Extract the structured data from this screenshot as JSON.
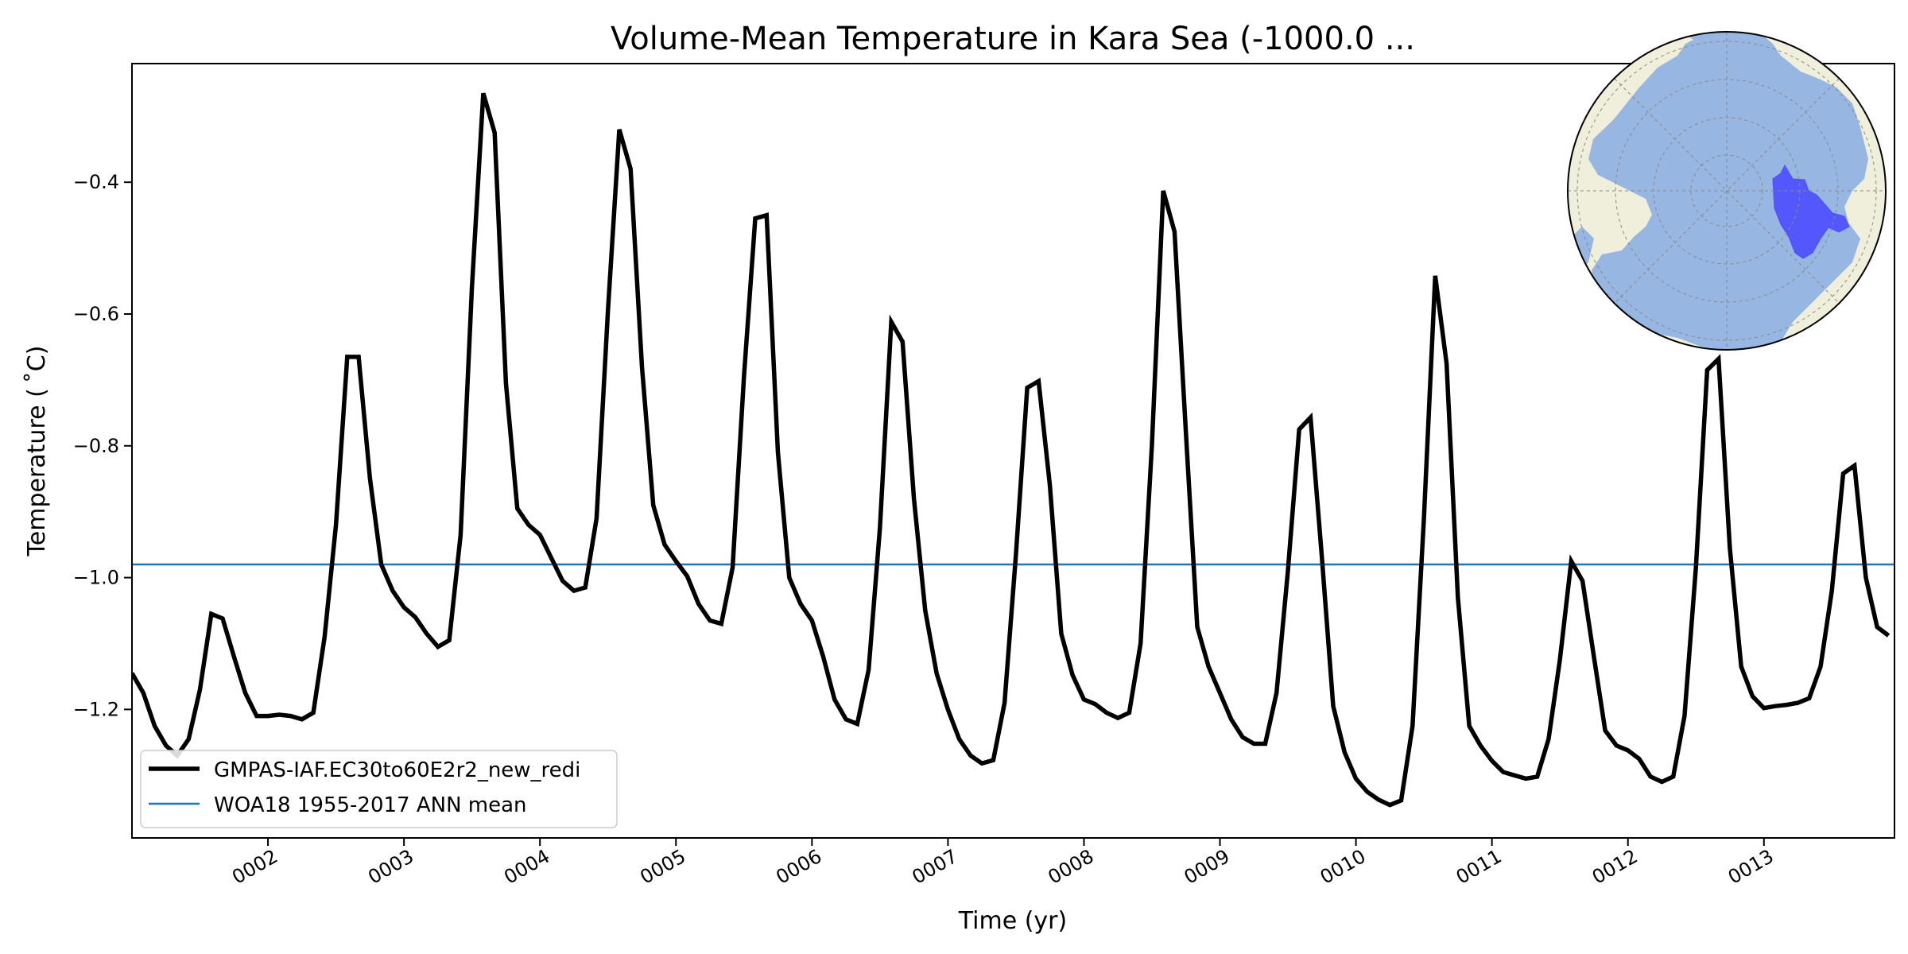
{
  "chart_data": {
    "type": "line",
    "title": "Volume-Mean Temperature in Kara Sea (-1000.0 ...",
    "xlabel": "Time (yr)",
    "ylabel": "Temperature ( ˚C)",
    "xlim": [
      1.0,
      13.96
    ],
    "ylim": [
      -1.395,
      -0.22
    ],
    "x_tick_values": [
      2,
      3,
      4,
      5,
      6,
      7,
      8,
      9,
      10,
      11,
      12,
      13
    ],
    "x_tick_labels": [
      "0002",
      "0003",
      "0004",
      "0005",
      "0006",
      "0007",
      "0008",
      "0009",
      "0010",
      "0011",
      "0012",
      "0013"
    ],
    "y_ticks": [
      -1.2,
      -1.0,
      -0.8,
      -0.6,
      -0.4
    ],
    "y_tick_labels": [
      "−1.2",
      "−1.0",
      "−0.8",
      "−0.6",
      "−0.4"
    ],
    "grid": false,
    "legend_position": "lower-left",
    "series": [
      {
        "name": "GMPAS-IAF.EC30to60E2r2_new_redi",
        "color": "#000000",
        "style": "thick-solid",
        "x_start": 1.0,
        "x_step": 0.08333,
        "values": [
          -1.145,
          -1.175,
          -1.225,
          -1.255,
          -1.27,
          -1.245,
          -1.17,
          -1.055,
          -1.062,
          -1.12,
          -1.175,
          -1.21,
          -1.21,
          -1.208,
          -1.21,
          -1.215,
          -1.205,
          -1.09,
          -0.92,
          -0.665,
          -0.665,
          -0.85,
          -0.98,
          -1.02,
          -1.045,
          -1.06,
          -1.085,
          -1.105,
          -1.095,
          -0.935,
          -0.56,
          -0.265,
          -0.325,
          -0.705,
          -0.895,
          -0.92,
          -0.935,
          -0.97,
          -1.005,
          -1.02,
          -1.015,
          -0.91,
          -0.595,
          -0.32,
          -0.38,
          -0.68,
          -0.89,
          -0.95,
          -0.975,
          -0.998,
          -1.04,
          -1.065,
          -1.07,
          -0.985,
          -0.695,
          -0.455,
          -0.45,
          -0.81,
          -1.0,
          -1.04,
          -1.065,
          -1.12,
          -1.185,
          -1.215,
          -1.222,
          -1.14,
          -0.925,
          -0.612,
          -0.642,
          -0.88,
          -1.05,
          -1.145,
          -1.2,
          -1.245,
          -1.27,
          -1.282,
          -1.277,
          -1.19,
          -0.965,
          -0.712,
          -0.702,
          -0.86,
          -1.085,
          -1.148,
          -1.185,
          -1.192,
          -1.205,
          -1.213,
          -1.205,
          -1.1,
          -0.8,
          -0.413,
          -0.475,
          -0.78,
          -1.075,
          -1.135,
          -1.175,
          -1.215,
          -1.242,
          -1.252,
          -1.252,
          -1.175,
          -0.99,
          -0.775,
          -0.757,
          -0.97,
          -1.195,
          -1.265,
          -1.305,
          -1.325,
          -1.337,
          -1.345,
          -1.338,
          -1.225,
          -0.91,
          -0.542,
          -0.675,
          -1.03,
          -1.225,
          -1.255,
          -1.278,
          -1.295,
          -1.3,
          -1.305,
          -1.302,
          -1.245,
          -1.125,
          -0.975,
          -1.005,
          -1.12,
          -1.232,
          -1.255,
          -1.262,
          -1.275,
          -1.302,
          -1.31,
          -1.302,
          -1.21,
          -0.985,
          -0.685,
          -0.668,
          -0.955,
          -1.135,
          -1.18,
          -1.198,
          -1.195,
          -1.193,
          -1.19,
          -1.183,
          -1.135,
          -1.02,
          -0.842,
          -0.83,
          -1.0,
          -1.075,
          -1.088
        ]
      },
      {
        "name": "WOA18 1955-2017 ANN mean",
        "color": "#1f77b4",
        "style": "thin-solid",
        "constant": -0.98
      }
    ],
    "inset_map": {
      "projection": "north-polar-stereographic",
      "ocean_color": "#97b6e1",
      "land_color": "#efefdb",
      "region_color": "#4d4dff",
      "region": "Kara Sea"
    }
  }
}
